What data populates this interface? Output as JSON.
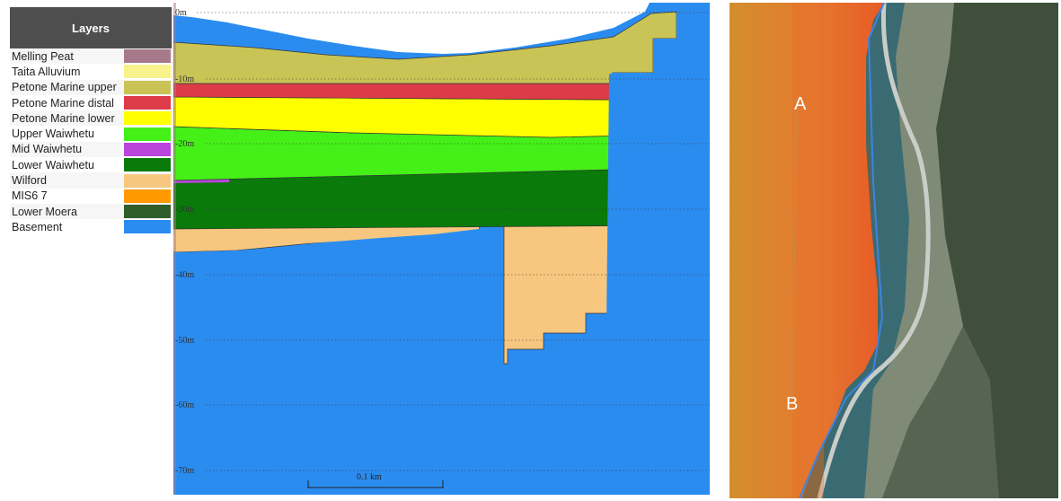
{
  "legend": {
    "title": "Layers",
    "items": [
      {
        "label": "Melling Peat",
        "color": "#a67a8a"
      },
      {
        "label": "Taita Alluvium",
        "color": "#f7f28c"
      },
      {
        "label": "Petone Marine upper",
        "color": "#c9c455"
      },
      {
        "label": "Petone Marine distal",
        "color": "#de3b48"
      },
      {
        "label": "Petone Marine lower",
        "color": "#ffff00"
      },
      {
        "label": "Upper Waiwhetu",
        "color": "#44f018"
      },
      {
        "label": "Mid Waiwhetu",
        "color": "#bb44dd"
      },
      {
        "label": "Lower Waiwhetu",
        "color": "#0a7a0a"
      },
      {
        "label": "Wilford",
        "color": "#f7c77f"
      },
      {
        "label": "MIS6 7",
        "color": "#ff9900"
      },
      {
        "label": "Lower Moera",
        "color": "#2f5e2a"
      },
      {
        "label": "Basement",
        "color": "#2b8cf0"
      }
    ]
  },
  "section": {
    "depth_labels": [
      "0m",
      "-10m",
      "-20m",
      "-30m",
      "-40m",
      "-50m",
      "-60m",
      "-70m"
    ],
    "scale_label": "0.1 km"
  },
  "map": {
    "markers": [
      "A",
      "B"
    ]
  }
}
